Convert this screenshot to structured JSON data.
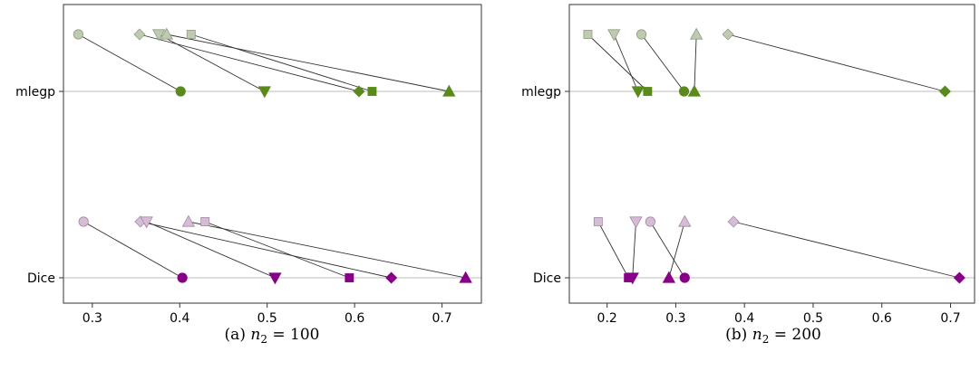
{
  "chart_data": [
    {
      "type": "scatter",
      "caption_prefix": "(a) ",
      "caption_var": "n",
      "caption_sub": "2",
      "caption_rest": " = 100",
      "categories": [
        "mlegp",
        "Dice"
      ],
      "xlim": [
        0.267,
        0.745
      ],
      "xticks": [
        0.3,
        0.4,
        0.5,
        0.6,
        0.7
      ],
      "grid": "horizontal",
      "series": [
        {
          "category": "mlegp",
          "shape": "circle",
          "from": 0.284,
          "to": 0.401
        },
        {
          "category": "mlegp",
          "shape": "diamond",
          "from": 0.354,
          "to": 0.605
        },
        {
          "category": "mlegp",
          "shape": "tri-down",
          "from": 0.376,
          "to": 0.497
        },
        {
          "category": "mlegp",
          "shape": "tri-up",
          "from": 0.385,
          "to": 0.708
        },
        {
          "category": "mlegp",
          "shape": "square",
          "from": 0.413,
          "to": 0.62
        },
        {
          "category": "Dice",
          "shape": "circle",
          "from": 0.29,
          "to": 0.403
        },
        {
          "category": "Dice",
          "shape": "diamond",
          "from": 0.355,
          "to": 0.642
        },
        {
          "category": "Dice",
          "shape": "tri-down",
          "from": 0.362,
          "to": 0.509
        },
        {
          "category": "Dice",
          "shape": "tri-up",
          "from": 0.41,
          "to": 0.727
        },
        {
          "category": "Dice",
          "shape": "square",
          "from": 0.429,
          "to": 0.594
        }
      ]
    },
    {
      "type": "scatter",
      "caption_prefix": "(b) ",
      "caption_var": "n",
      "caption_sub": "2",
      "caption_rest": " = 200",
      "categories": [
        "mlegp",
        "Dice"
      ],
      "xlim": [
        0.145,
        0.735
      ],
      "xticks": [
        0.2,
        0.3,
        0.4,
        0.5,
        0.6,
        0.7
      ],
      "grid": "horizontal",
      "series": [
        {
          "category": "mlegp",
          "shape": "square",
          "from": 0.172,
          "to": 0.259
        },
        {
          "category": "mlegp",
          "shape": "tri-down",
          "from": 0.21,
          "to": 0.245
        },
        {
          "category": "mlegp",
          "shape": "circle",
          "from": 0.25,
          "to": 0.312
        },
        {
          "category": "mlegp",
          "shape": "tri-up",
          "from": 0.33,
          "to": 0.327
        },
        {
          "category": "mlegp",
          "shape": "diamond",
          "from": 0.376,
          "to": 0.692
        },
        {
          "category": "Dice",
          "shape": "square",
          "from": 0.187,
          "to": 0.231
        },
        {
          "category": "Dice",
          "shape": "tri-down",
          "from": 0.242,
          "to": 0.237
        },
        {
          "category": "Dice",
          "shape": "circle",
          "from": 0.263,
          "to": 0.313
        },
        {
          "category": "Dice",
          "shape": "tri-up",
          "from": 0.313,
          "to": 0.29
        },
        {
          "category": "Dice",
          "shape": "diamond",
          "from": 0.384,
          "to": 0.713
        }
      ]
    }
  ],
  "colors": {
    "mlegp_after": "#5b8a1c",
    "mlegp_before": "#bfcbb0",
    "mlegp_before_edge": "#8f9c82",
    "dice_after": "#880088",
    "dice_before": "#d6bdd6",
    "dice_before_edge": "#a488a4"
  }
}
